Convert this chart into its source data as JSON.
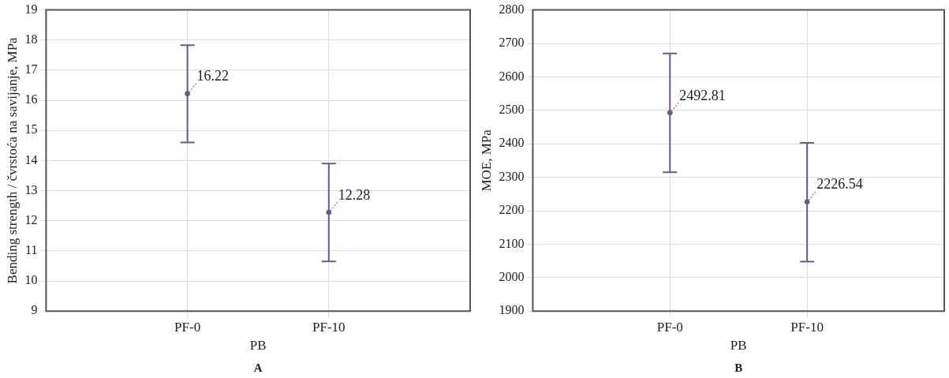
{
  "chart_data": [
    {
      "type": "scatter",
      "categories": [
        "PF-0",
        "PF-10"
      ],
      "xlabel": "PB",
      "ylabel": "Bending strength / čvrstoća na savijanje, MPa",
      "annotations": [
        "A"
      ],
      "series": [
        {
          "color": "#6a5a8c",
          "values": [
            16.22,
            12.28
          ],
          "errors": [
            [
              14.6,
              17.83
            ],
            [
              10.65,
              13.9
            ]
          ]
        }
      ],
      "ylim": [
        9,
        19
      ],
      "yticks": [
        9,
        10,
        11,
        12,
        13,
        14,
        15,
        16,
        17,
        18,
        19
      ],
      "grid": true,
      "legend": false,
      "marker": "circle",
      "data_labels": true
    },
    {
      "type": "scatter",
      "categories": [
        "PF-0",
        "PF-10"
      ],
      "xlabel": "PB",
      "ylabel": "MOE, MPa",
      "annotations": [
        "B"
      ],
      "series": [
        {
          "color": "#6a5a8c",
          "values": [
            2492.81,
            2226.54
          ],
          "errors": [
            [
              2315,
              2670
            ],
            [
              2048,
              2403
            ]
          ]
        }
      ],
      "ylim": [
        1900,
        2800
      ],
      "yticks": [
        1900,
        2000,
        2100,
        2200,
        2300,
        2400,
        2500,
        2600,
        2700,
        2800
      ],
      "grid": true,
      "legend": false,
      "marker": "circle",
      "data_labels": true
    }
  ]
}
